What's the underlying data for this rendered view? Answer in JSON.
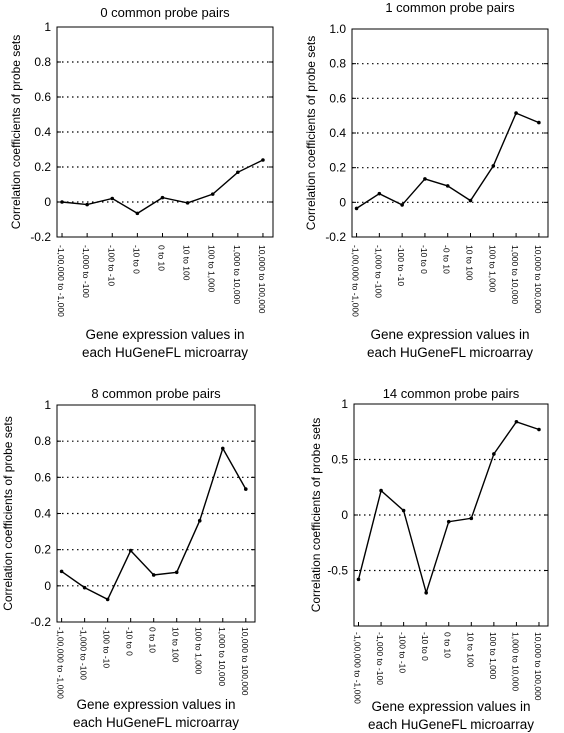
{
  "chart_data": [
    {
      "type": "line",
      "title": "0 common probe pairs",
      "xlabel_lines": [
        "Gene expression values in",
        "each HuGeneFL microarray"
      ],
      "ylabel": "Correlation coefficients of probe sets",
      "categories": [
        "-1,00,000 to -1,000",
        "-1,000 to -100",
        "-100 to -10",
        "-10 to 0",
        "0 to 10",
        "10 to 100",
        "100 to 1,000",
        "1,000 to 10,000",
        "10,000 to 100,000"
      ],
      "values": [
        0.0,
        -0.015,
        0.02,
        -0.065,
        0.025,
        -0.005,
        0.045,
        0.17,
        0.24
      ],
      "ylim": [
        -0.2,
        1.0
      ],
      "yticks": [
        -0.2,
        0,
        0.2,
        0.4,
        0.6,
        0.8,
        1
      ],
      "ytick_labels": [
        "-0.2",
        "0",
        "0.2",
        "0.4",
        "0.6",
        "0.8",
        "1"
      ],
      "grid": "dotted horizontal"
    },
    {
      "type": "line",
      "title": "1 common probe pairs",
      "xlabel_lines": [
        "Gene expression values in",
        "each HuGeneFL microarray"
      ],
      "ylabel": "Correlation coefficients of probe sets",
      "categories": [
        "-1,00,000 to -1,000",
        "-1,000 to -100",
        "-100 to -10",
        "-10 to 0",
        "-0 to 10",
        "10 to 100",
        "100 to 1,000",
        "1,000 to 10,000",
        "10,000 to 100,000"
      ],
      "values": [
        -0.035,
        0.05,
        -0.015,
        0.135,
        0.095,
        0.01,
        0.21,
        0.515,
        0.46
      ],
      "ylim": [
        -0.2,
        1.0
      ],
      "yticks": [
        -0.2,
        0,
        0.2,
        0.4,
        0.6,
        0.8,
        1.0
      ],
      "ytick_labels": [
        "-0.2",
        "0",
        "0.2",
        "0.4",
        "0.6",
        "0.8",
        "1.0"
      ],
      "grid": "dotted horizontal"
    },
    {
      "type": "line",
      "title": "8 common probe pairs",
      "xlabel_lines": [
        "Gene expression values in",
        "each HuGeneFL microarray"
      ],
      "ylabel": "Correlation coefficients of probe sets",
      "categories": [
        "-1,00,000 to -1,000",
        "-1,000 to -100",
        "-100 to -10",
        "-10 to 0",
        "0 to 10",
        "10 to 100",
        "100 to 1,000",
        "1,000 to 10,000",
        "10,000 to 100,000"
      ],
      "values": [
        0.08,
        -0.01,
        -0.075,
        0.195,
        0.06,
        0.075,
        0.36,
        0.76,
        0.535
      ],
      "ylim": [
        -0.2,
        1.0
      ],
      "yticks": [
        -0.2,
        0,
        0.2,
        0.4,
        0.6,
        0.8,
        1
      ],
      "ytick_labels": [
        "-0.2",
        "0",
        "0.2",
        "0.4",
        "0.6",
        "0.8",
        "1"
      ],
      "grid": "dotted horizontal"
    },
    {
      "type": "line",
      "title": "14 common probe pairs",
      "xlabel_lines": [
        "Gene expression values in",
        "each HuGeneFL microarray"
      ],
      "ylabel": "Correlation coefficients of probe sets",
      "categories": [
        "-1,00,000 to -1,000",
        "-1,000 to -100",
        "-100 to -10",
        "-10 to 0",
        "0 to 10",
        "10 to 100",
        "100 to 1,000",
        "1,000 to 10,000",
        "10,000 to 100,000"
      ],
      "values": [
        -0.58,
        0.22,
        0.04,
        -0.7,
        -0.06,
        -0.03,
        0.55,
        0.84,
        0.77
      ],
      "ylim": [
        -1.0,
        1.0
      ],
      "yticks": [
        -1,
        -0.5,
        0,
        0.5,
        1
      ],
      "ytick_labels": [
        "",
        "-0.5",
        "0",
        "0.5",
        "1"
      ],
      "grid": "dotted horizontal"
    }
  ]
}
